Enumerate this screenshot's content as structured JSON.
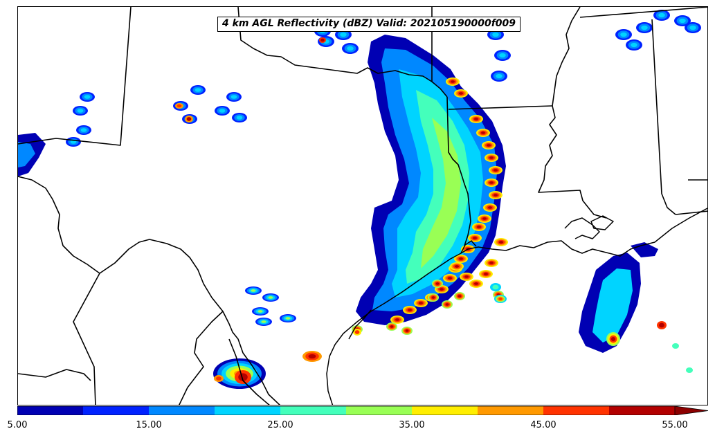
{
  "map": {
    "title": "4 km AGL Reflectivity (dBZ) Valid: 202105190000f009",
    "field": "reflectivity_dbz"
  },
  "colorbar": {
    "min": 5.0,
    "max": 55.0,
    "step": 5.0,
    "extend": "max",
    "colors": [
      "#0000b3",
      "#0022ff",
      "#0088ff",
      "#00d4ff",
      "#44ffbb",
      "#99ff55",
      "#ffee00",
      "#ff9900",
      "#ff3300",
      "#b30000"
    ],
    "extend_color": "#8c0000",
    "tick_labels": [
      "5.00",
      "15.00",
      "25.00",
      "35.00",
      "45.00",
      "55.00"
    ]
  }
}
